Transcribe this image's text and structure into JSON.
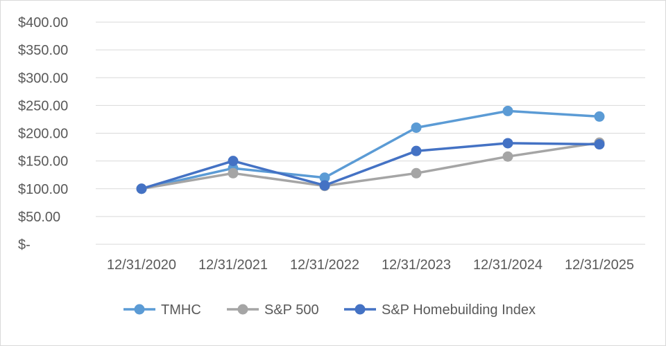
{
  "chart_data": {
    "type": "line",
    "title": "",
    "xlabel": "",
    "ylabel": "",
    "categories": [
      "12/31/2020",
      "12/31/2021",
      "12/31/2022",
      "12/31/2023",
      "12/31/2024",
      "12/31/2025"
    ],
    "ylim": [
      0,
      400
    ],
    "yticks": [
      0,
      50,
      100,
      150,
      200,
      250,
      300,
      350,
      400
    ],
    "ytick_labels": [
      "$-",
      "$50.00",
      "$100.00",
      "$150.00",
      "$200.00",
      "$250.00",
      "$300.00",
      "$350.00",
      "$400.00"
    ],
    "grid": true,
    "legend_position": "bottom",
    "series": [
      {
        "name": "TMHC",
        "color": "#5b9bd5",
        "values": [
          100,
          137,
          120,
          210,
          240,
          230
        ]
      },
      {
        "name": "S&P 500",
        "color": "#a5a5a5",
        "values": [
          100,
          128,
          105,
          128,
          158,
          183
        ]
      },
      {
        "name": "S&P Homebuilding Index",
        "color": "#4472c4",
        "values": [
          100,
          150,
          106,
          168,
          182,
          180
        ]
      }
    ]
  }
}
